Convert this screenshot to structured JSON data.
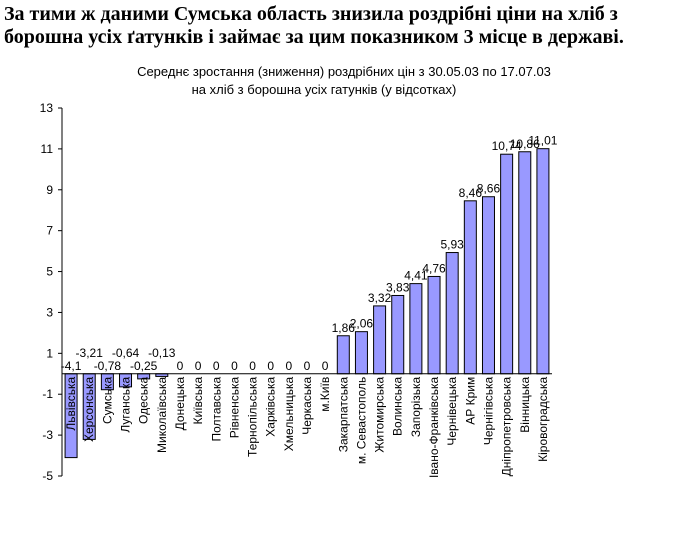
{
  "headline": {
    "line1": "За тими ж даними Сумська область знизила роздрібні ціни на хліб з",
    "line2": "борошна усіх  ґатунків і займає за цим показником 3 місце в державі."
  },
  "chart_data": {
    "type": "bar",
    "title": "Середнє зростання (зниження) роздрібних цін з 30.05.03 по 17.07.03",
    "subtitle": "на хліб з борошна усіх гатунків (у відсотках)",
    "ylim": [
      -5,
      13
    ],
    "yticks": [
      "-5",
      "-3",
      "-1",
      "1",
      "3",
      "5",
      "7",
      "9",
      "11",
      "13"
    ],
    "grid": false,
    "bar_color": "#9999ff",
    "categories": [
      "Львівська",
      "Херсонська",
      "Сумська",
      "Луганська",
      "Одеська",
      "Миколаївська",
      "Донецька",
      "Київська",
      "Полтавська",
      "Рівненська",
      "Тернопільська",
      "Харківська",
      "Хмельницька",
      "Черкаська",
      "м.Київ",
      "Закарпатська",
      "м. Севастополь",
      "Житомирська",
      "Волинська",
      "Запорізька",
      "Івано-Франківська",
      "Чернівецька",
      "АР Крим",
      "Чернігівська",
      "Дніпропетровська",
      "Вінницька",
      "Кіровоградська"
    ],
    "values": [
      -4.1,
      -3.21,
      -0.78,
      -0.64,
      -0.25,
      -0.13,
      0,
      0,
      0,
      0,
      0,
      0,
      0,
      0,
      0,
      1.86,
      2.06,
      3.32,
      3.83,
      4.41,
      4.76,
      5.93,
      8.46,
      8.66,
      10.74,
      10.86,
      11.01
    ],
    "labels": [
      "-4,1",
      "-3,21",
      "-0,78",
      "-0,64",
      "-0,25",
      "-0,13",
      "0",
      "0",
      "0",
      "0",
      "0",
      "0",
      "0",
      "0",
      "0",
      "1,86",
      "2,06",
      "3,32",
      "3,83",
      "4,41",
      "4,76",
      "5,93",
      "8,46",
      "8,66",
      "10,74",
      "10,86",
      "11,01"
    ]
  }
}
